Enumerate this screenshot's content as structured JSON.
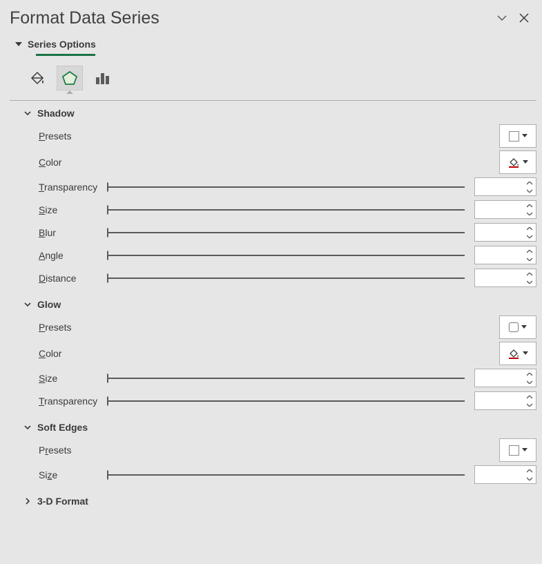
{
  "colors": {
    "background": "#e6e6e6",
    "text": "#3a3a3a",
    "accent_underline": "#1b7346",
    "divider": "#adadad",
    "input_bg": "#ffffff",
    "input_border": "#adadad",
    "slider": "#5a5a5a",
    "selected_tab_bg": "#d7d7d7",
    "pentagon_fill": "#e2efda",
    "pentagon_stroke": "#1f7a44"
  },
  "header": {
    "title": "Format Data Series"
  },
  "seriesOptions": {
    "label": "Series Options",
    "tabs": [
      "fill-line",
      "effects",
      "series-options"
    ],
    "selected": "effects"
  },
  "sections": {
    "shadow": {
      "title": "Shadow",
      "expanded": true,
      "presets_label": "Presets",
      "color_label": "Color",
      "sliders": [
        {
          "label": "Transparency",
          "value": ""
        },
        {
          "label": "Size",
          "value": ""
        },
        {
          "label": "Blur",
          "value": ""
        },
        {
          "label": "Angle",
          "value": ""
        },
        {
          "label": "Distance",
          "value": ""
        }
      ]
    },
    "glow": {
      "title": "Glow",
      "expanded": true,
      "presets_label": "Presets",
      "color_label": "Color",
      "sliders": [
        {
          "label": "Size",
          "value": ""
        },
        {
          "label": "Transparency",
          "value": ""
        }
      ]
    },
    "softEdges": {
      "title": "Soft Edges",
      "expanded": true,
      "presets_label": "Presets",
      "sliders": [
        {
          "label": "Size",
          "value": ""
        }
      ]
    },
    "format3d": {
      "title": "3-D Format",
      "expanded": false
    }
  }
}
